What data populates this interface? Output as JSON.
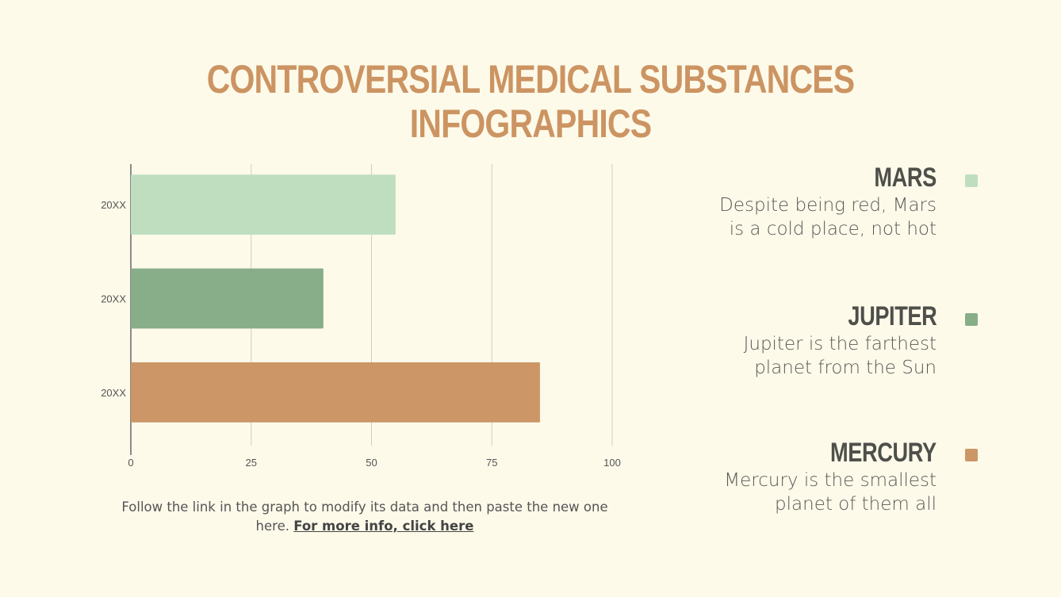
{
  "title": "CONTROVERSIAL MEDICAL SUBSTANCES INFOGRAPHICS",
  "chart_data": {
    "type": "bar",
    "orientation": "horizontal",
    "categories": [
      "20XX",
      "20XX",
      "20XX"
    ],
    "values": [
      55,
      40,
      85
    ],
    "colors": [
      "#bfdec0",
      "#88ad89",
      "#cc9666"
    ],
    "xlim": [
      0,
      100
    ],
    "xticks": [
      0,
      25,
      50,
      75,
      100
    ],
    "grid": true
  },
  "legend": [
    {
      "heading": "MARS",
      "line1": "Despite being red, Mars",
      "line2": "is a cold place, not hot",
      "color": "#bfdec0"
    },
    {
      "heading": "JUPITER",
      "line1": "Jupiter is the farthest",
      "line2": "planet from the Sun",
      "color": "#88ad89"
    },
    {
      "heading": "MERCURY",
      "line1": "Mercury is the smallest",
      "line2": "planet of them all",
      "color": "#cc9666"
    }
  ],
  "note": {
    "text": "Follow the link in the graph to modify its data and then paste the new one here. ",
    "link": "For more info, click here"
  }
}
